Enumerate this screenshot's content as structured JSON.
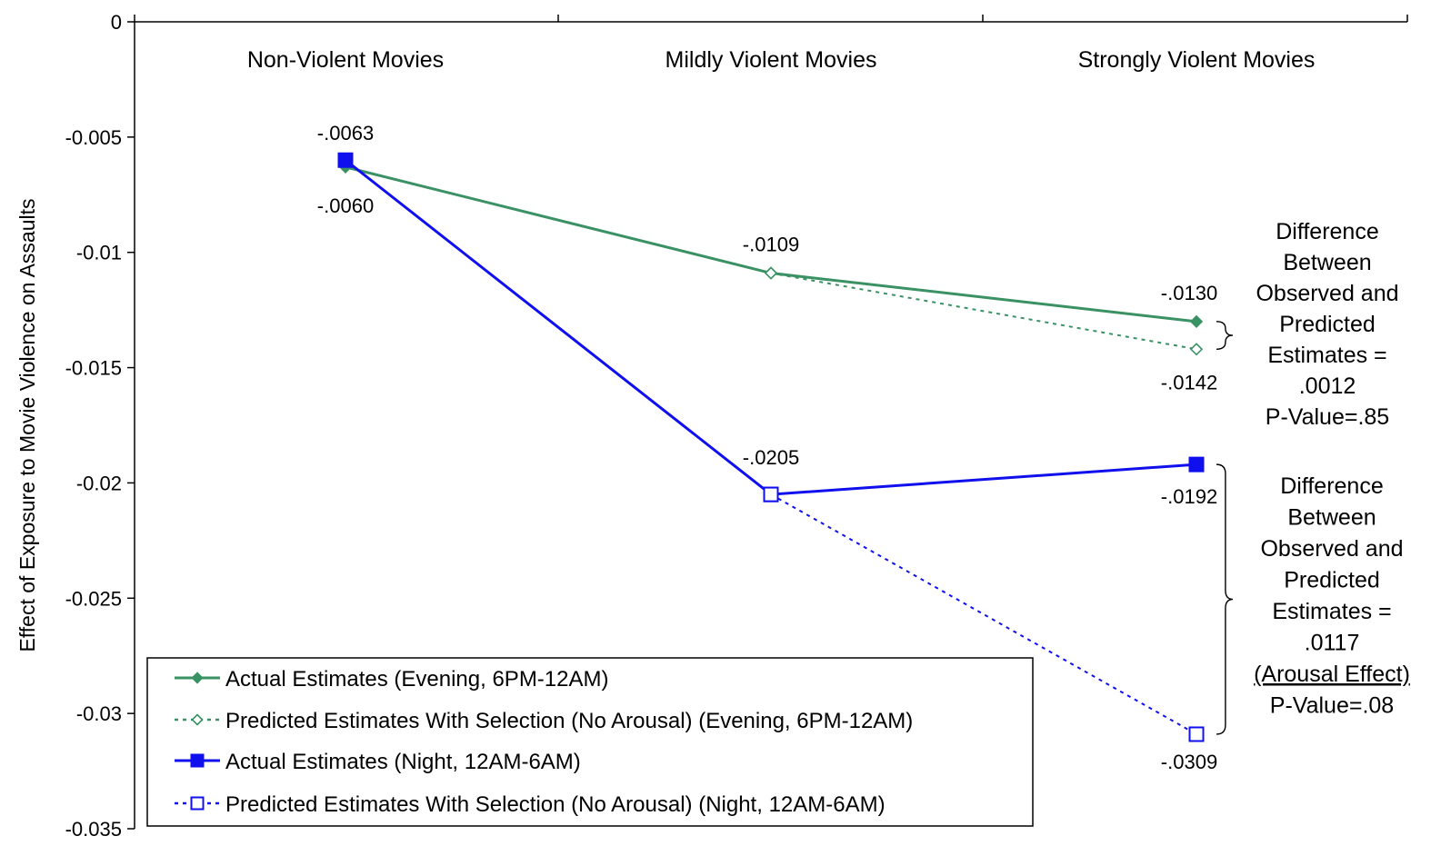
{
  "chart_data": {
    "type": "line",
    "ylabel": "Effect of Exposure to Movie Violence on Assaults",
    "xlabel": "",
    "categories": [
      "Non-Violent Movies",
      "Mildly Violent Movies",
      "Strongly Violent Movies"
    ],
    "ylim": [
      -0.035,
      0
    ],
    "yticks": [
      0,
      -0.005,
      -0.01,
      -0.015,
      -0.02,
      -0.025,
      -0.03,
      -0.035
    ],
    "ytick_labels": [
      "0",
      "-0.005",
      "-0.01",
      "-0.015",
      "-0.02",
      "-0.025",
      "-0.03",
      "-0.035"
    ],
    "x_axis_position": "top",
    "grid": false,
    "legend_position": "bottom-left",
    "series": [
      {
        "name": "Actual Estimates (Evening, 6PM-12AM)",
        "values": [
          -0.0063,
          -0.0109,
          -0.013
        ],
        "color": "#3a9163",
        "dash": "solid",
        "marker": "filled-diamond"
      },
      {
        "name": "Predicted Estimates With Selection (No Arousal) (Evening, 6PM-12AM)",
        "values": [
          null,
          -0.0109,
          -0.0142
        ],
        "color": "#3a9163",
        "dash": "dotted",
        "marker": "hollow-diamond"
      },
      {
        "name": "Actual Estimates (Night, 12AM-6AM)",
        "values": [
          -0.006,
          -0.0205,
          -0.0192
        ],
        "color": "#1010ee",
        "dash": "solid",
        "marker": "filled-square"
      },
      {
        "name": "Predicted Estimates With Selection (No Arousal) (Night, 12AM-6AM)",
        "values": [
          null,
          -0.0205,
          -0.0309
        ],
        "color": "#1010ee",
        "dash": "dotted",
        "marker": "hollow-square"
      }
    ],
    "data_labels": [
      {
        "text": "-.0063",
        "category": 0,
        "value": -0.0063
      },
      {
        "text": "-.0060",
        "category": 0,
        "value": -0.006
      },
      {
        "text": "-.0109",
        "category": 1,
        "value": -0.0109
      },
      {
        "text": "-.0205",
        "category": 1,
        "value": -0.0205
      },
      {
        "text": "-.0130",
        "category": 2,
        "value": -0.013
      },
      {
        "text": "-.0142",
        "category": 2,
        "value": -0.0142
      },
      {
        "text": "-.0192",
        "category": 2,
        "value": -0.0192
      },
      {
        "text": "-.0309",
        "category": 2,
        "value": -0.0309
      }
    ],
    "annotations": [
      {
        "lines": [
          "Difference",
          "Between",
          "Observed and",
          "Predicted",
          "Estimates =",
          ".0012",
          "P-Value=.85"
        ],
        "underlined": [],
        "bracket_from": -0.013,
        "bracket_to": -0.0142
      },
      {
        "lines": [
          "Difference",
          "Between",
          "Observed and",
          "Predicted",
          "Estimates =",
          ".0117",
          "(Arousal Effect)",
          "P-Value=.08"
        ],
        "underlined": [
          "(Arousal Effect)"
        ],
        "bracket_from": -0.0192,
        "bracket_to": -0.0309
      }
    ]
  }
}
